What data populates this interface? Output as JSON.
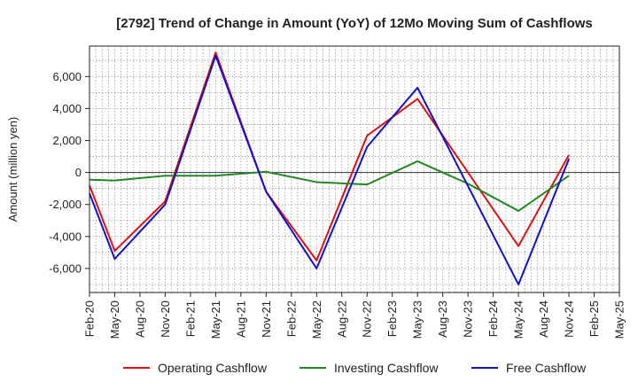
{
  "chart_data": {
    "type": "line",
    "title": "[2792]  Trend of Change in Amount (YoY) of 12Mo Moving Sum of Cashflows",
    "ylabel": "Amount (million yen)",
    "xlabel": "",
    "ylim": [
      -7500,
      7900
    ],
    "yticks": [
      6000,
      4000,
      2000,
      0,
      -2000,
      -4000,
      -6000
    ],
    "ytick_labels": [
      "6,000",
      "4,000",
      "2,000",
      "0",
      "-2,000",
      "-4,000",
      "-6,000"
    ],
    "categories": [
      "Feb-20",
      "May-20",
      "Aug-20",
      "Nov-20",
      "Feb-21",
      "May-21",
      "Aug-21",
      "Nov-21",
      "Feb-22",
      "May-22",
      "Aug-22",
      "Nov-22",
      "Feb-23",
      "May-23",
      "Aug-23",
      "Nov-23",
      "Feb-24",
      "May-24",
      "Aug-24",
      "Nov-24",
      "Feb-25",
      "May-25"
    ],
    "series": [
      {
        "name": "Operating Cashflow",
        "color": "#dd1111",
        "x": [
          0,
          1,
          3,
          5,
          7,
          9,
          11,
          13,
          17,
          19
        ],
        "values": [
          -800,
          -4900,
          -1800,
          7500,
          -1200,
          -5500,
          2300,
          4600,
          -4600,
          1100
        ]
      },
      {
        "name": "Investing Cashflow",
        "color": "#228822",
        "x": [
          0,
          1,
          3,
          4,
          5,
          7,
          9,
          11,
          13,
          15,
          17,
          19
        ],
        "values": [
          -450,
          -500,
          -200,
          -200,
          -200,
          50,
          -600,
          -750,
          700,
          -700,
          -2400,
          -200
        ]
      },
      {
        "name": "Free Cashflow",
        "color": "#1111cc",
        "x": [
          0,
          1,
          3,
          5,
          7,
          9,
          11,
          13,
          17,
          19
        ],
        "values": [
          -1300,
          -5400,
          -2000,
          7300,
          -1200,
          -6000,
          1600,
          5300,
          -7000,
          850
        ]
      }
    ],
    "legend_position": "bottom",
    "grid": true
  }
}
